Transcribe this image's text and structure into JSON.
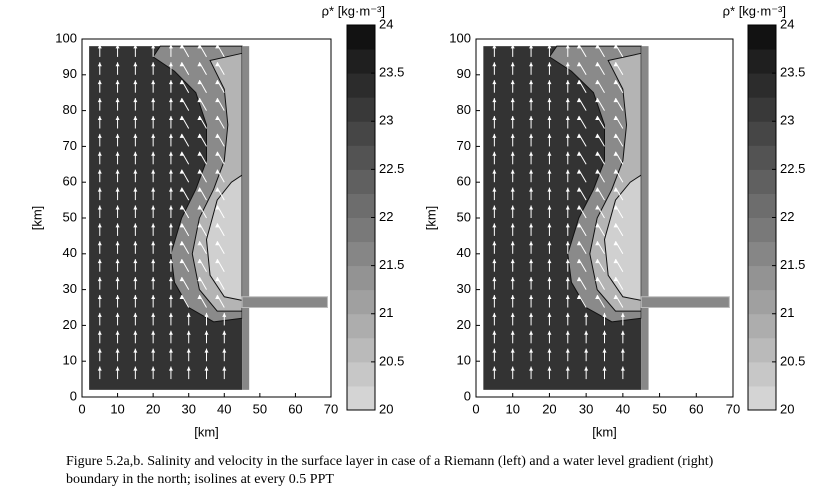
{
  "chart_data": [
    {
      "type": "contour",
      "xlabel": "[km]",
      "ylabel": "[km]",
      "xlim": [
        0,
        70
      ],
      "ylim": [
        0,
        100
      ],
      "xticks": [
        0,
        10,
        20,
        30,
        40,
        50,
        60,
        70
      ],
      "yticks": [
        0,
        10,
        20,
        30,
        40,
        50,
        60,
        70,
        80,
        90,
        100
      ],
      "colorbar": {
        "label": "ρ* [kg·m⁻³]",
        "lim": [
          20,
          24
        ],
        "ticks": [
          20,
          20.5,
          21,
          21.5,
          22,
          22.5,
          23,
          23.5,
          24
        ]
      }
    },
    {
      "type": "contour",
      "xlabel": "[km]",
      "ylabel": "[km]",
      "xlim": [
        0,
        70
      ],
      "ylim": [
        0,
        100
      ],
      "xticks": [
        0,
        10,
        20,
        30,
        40,
        50,
        60,
        70
      ],
      "yticks": [
        0,
        10,
        20,
        30,
        40,
        50,
        60,
        70,
        80,
        90,
        100
      ],
      "colorbar": {
        "label": "ρ* [kg·m⁻³]",
        "lim": [
          20,
          24
        ],
        "ticks": [
          20,
          20.5,
          21,
          21.5,
          22,
          22.5,
          23,
          23.5,
          24
        ]
      }
    }
  ],
  "caption": "Figure 5.2a,b. Salinity and velocity in the surface layer in case of a Riemann (left) and a water level gradient (right) boundary in the north; isolines at every 0.5 PPT"
}
